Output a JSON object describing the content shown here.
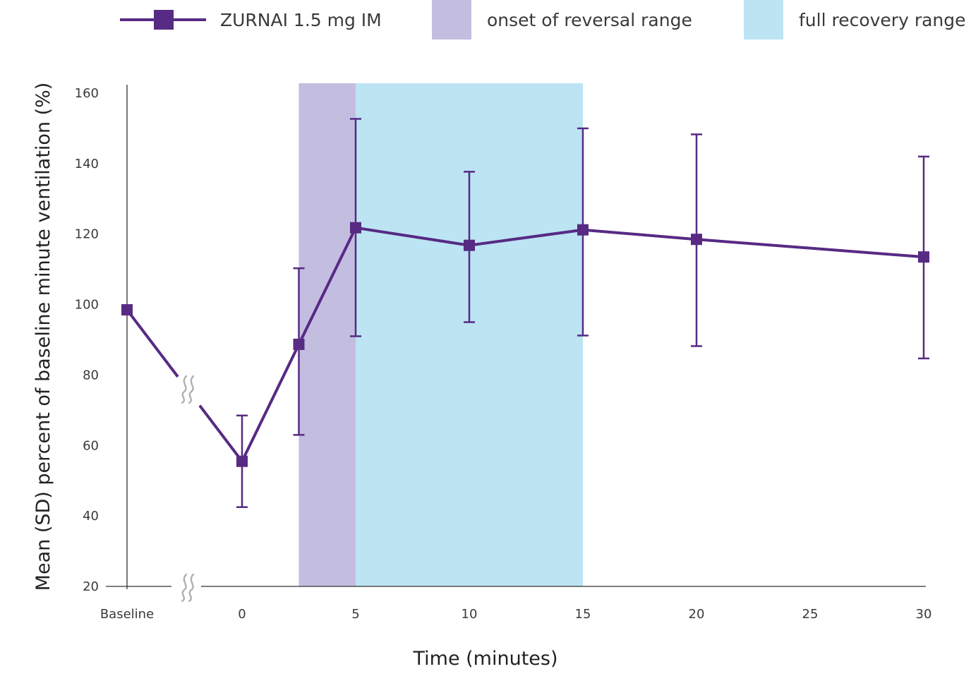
{
  "legend": {
    "series_label": "ZURNAI 1.5 mg IM",
    "onset_label": "onset of reversal range",
    "recovery_label": "full recovery range"
  },
  "colors": {
    "series": "#572a84",
    "onset_band": "#c3bde0",
    "recovery_band": "#bce4f3",
    "axis": "#333333",
    "break_mark": "#b0b0b0"
  },
  "chart_data": {
    "type": "line",
    "title": "",
    "xlabel": "Time (minutes)",
    "ylabel": "Mean (SD) percent of baseline minute ventilation (%)",
    "ylim": [
      20,
      160
    ],
    "y_ticks": [
      20,
      40,
      60,
      80,
      100,
      120,
      140,
      160
    ],
    "x_ticks": [
      {
        "label": "Baseline",
        "value": "baseline"
      },
      {
        "label": "0",
        "value": 0
      },
      {
        "label": "5",
        "value": 5
      },
      {
        "label": "10",
        "value": 10
      },
      {
        "label": "15",
        "value": 15
      },
      {
        "label": "20",
        "value": 20
      },
      {
        "label": "25",
        "value": 25
      },
      {
        "label": "30",
        "value": 30
      }
    ],
    "axis_break": "between Baseline and 0 on the x-axis",
    "series": [
      {
        "name": "ZURNAI 1.5 mg IM",
        "points": [
          {
            "x": "baseline",
            "y": 98.5
          },
          {
            "x": 0,
            "y": 55.5,
            "sd_low": 42.5,
            "sd_high": 68.5
          },
          {
            "x": 2.5,
            "y": 88.7,
            "sd_low": 63,
            "sd_high": 110.3
          },
          {
            "x": 5,
            "y": 121.8,
            "sd_low": 91,
            "sd_high": 152.7
          },
          {
            "x": 10,
            "y": 116.8,
            "sd_low": 95,
            "sd_high": 137.7
          },
          {
            "x": 15,
            "y": 121.2,
            "sd_low": 91.2,
            "sd_high": 150
          },
          {
            "x": 20,
            "y": 118.5,
            "sd_low": 88.2,
            "sd_high": 148.3
          },
          {
            "x": 30,
            "y": 113.5,
            "sd_low": 84.7,
            "sd_high": 142
          }
        ]
      }
    ],
    "bands": [
      {
        "name": "onset of reversal range",
        "x_start": 2.5,
        "x_end": 5
      },
      {
        "name": "full recovery range",
        "x_start": 5,
        "x_end": 15
      }
    ],
    "legend_position": "top"
  }
}
